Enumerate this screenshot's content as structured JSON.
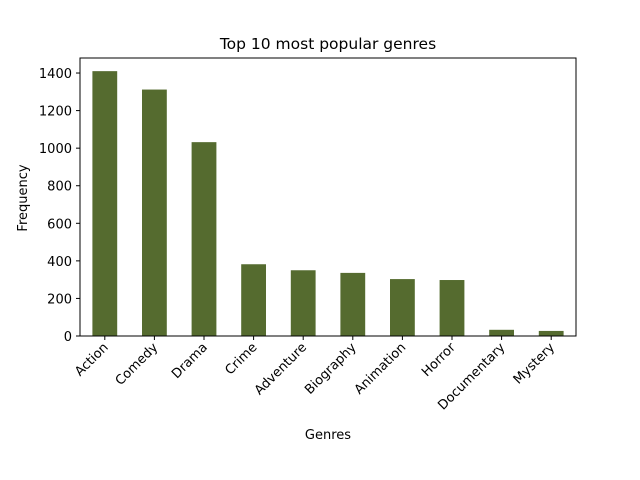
{
  "chart_data": {
    "type": "bar",
    "title": "Top 10 most popular genres",
    "xlabel": "Genres",
    "ylabel": "Frequency",
    "categories": [
      "Action",
      "Comedy",
      "Drama",
      "Crime",
      "Adventure",
      "Biography",
      "Animation",
      "Horror",
      "Documentary",
      "Mystery"
    ],
    "values": [
      1410,
      1312,
      1032,
      382,
      350,
      336,
      303,
      298,
      33,
      27
    ],
    "yticks": [
      0,
      200,
      400,
      600,
      800,
      1000,
      1200,
      1400
    ],
    "ylim": [
      0,
      1480
    ],
    "bar_color": "#556b2f",
    "grid": false,
    "legend": false
  }
}
